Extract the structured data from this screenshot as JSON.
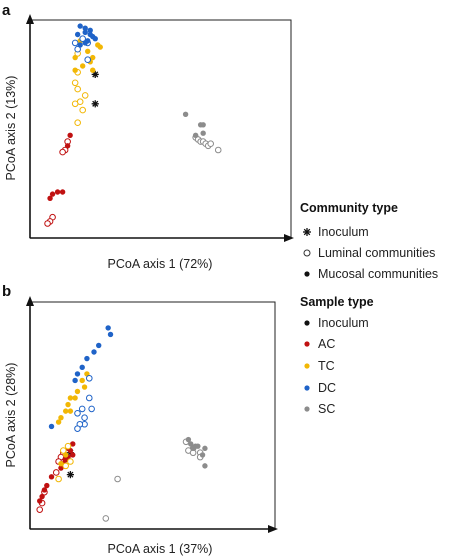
{
  "chart_data": [
    {
      "type": "scatter",
      "panel_label": "a",
      "xlabel": "PCoA axis 1 (72%)",
      "ylabel": "PCoA axis 2 (13%)",
      "xlim": [
        0,
        100
      ],
      "ylim": [
        0,
        100
      ],
      "grid": false,
      "series": [
        {
          "name": "Inoculum",
          "sample": "Inoculum",
          "community": "Inoculum",
          "points": [
            [
              24,
              76
            ],
            [
              24,
              62
            ]
          ]
        },
        {
          "name": "AC luminal",
          "sample": "AC",
          "community": "Luminal communities",
          "points": [
            [
              13,
              44
            ],
            [
              12,
              40
            ],
            [
              11,
              39
            ],
            [
              7,
              8
            ],
            [
              6,
              6
            ],
            [
              5,
              5
            ]
          ]
        },
        {
          "name": "AC mucosal",
          "sample": "AC",
          "community": "Mucosal communities",
          "points": [
            [
              14,
              47
            ],
            [
              13,
              42
            ],
            [
              11,
              20
            ],
            [
              9,
              20
            ],
            [
              7,
              19
            ],
            [
              6,
              17
            ]
          ]
        },
        {
          "name": "TC luminal",
          "sample": "TC",
          "community": "Luminal communities",
          "points": [
            [
              17,
              86
            ],
            [
              17,
              77
            ],
            [
              16,
              72
            ],
            [
              17,
              69
            ],
            [
              18,
              63
            ],
            [
              16,
              62
            ],
            [
              19,
              59
            ],
            [
              20,
              66
            ],
            [
              17,
              53
            ]
          ]
        },
        {
          "name": "TC mucosal",
          "sample": "TC",
          "community": "Mucosal communities",
          "points": [
            [
              18,
              92
            ],
            [
              16,
              84
            ],
            [
              21,
              87
            ],
            [
              23,
              84
            ],
            [
              25,
              90
            ],
            [
              26,
              89
            ],
            [
              22,
              82
            ],
            [
              19,
              80
            ],
            [
              23,
              78
            ],
            [
              16,
              78
            ]
          ]
        },
        {
          "name": "DC luminal",
          "sample": "DC",
          "community": "Luminal communities",
          "points": [
            [
              19,
              93
            ],
            [
              16,
              91
            ],
            [
              21,
              91
            ],
            [
              17,
              88
            ],
            [
              21,
              83
            ]
          ]
        },
        {
          "name": "DC mucosal",
          "sample": "DC",
          "community": "Mucosal communities",
          "points": [
            [
              18,
              99
            ],
            [
              20,
              98
            ],
            [
              22,
              97
            ],
            [
              20,
              96
            ],
            [
              22,
              95
            ],
            [
              23,
              94
            ],
            [
              24,
              93
            ],
            [
              17,
              95
            ],
            [
              21,
              92
            ],
            [
              20,
              91
            ],
            [
              18,
              90
            ]
          ]
        },
        {
          "name": "SC luminal",
          "sample": "SC",
          "community": "Luminal communities",
          "points": [
            [
              64,
              46
            ],
            [
              65,
              45
            ],
            [
              66,
              44
            ],
            [
              67,
              44
            ],
            [
              68,
              43
            ],
            [
              69,
              42
            ],
            [
              70,
              43
            ],
            [
              73,
              40
            ]
          ]
        },
        {
          "name": "SC mucosal",
          "sample": "SC",
          "community": "Mucosal communities",
          "points": [
            [
              60,
              57
            ],
            [
              66,
              52
            ],
            [
              67,
              52
            ],
            [
              67,
              48
            ],
            [
              64,
              47
            ]
          ]
        }
      ]
    },
    {
      "type": "scatter",
      "panel_label": "b",
      "xlabel": "PCoA axis 1 (37%)",
      "ylabel": "PCoA axis 2 (28%)",
      "xlim": [
        0,
        100
      ],
      "ylim": [
        0,
        100
      ],
      "grid": false,
      "series": [
        {
          "name": "Inoculum",
          "sample": "Inoculum",
          "community": "Inoculum",
          "points": [
            [
              15,
              23
            ],
            [
              15,
              33
            ]
          ]
        },
        {
          "name": "AC luminal",
          "sample": "AC",
          "community": "Luminal communities",
          "points": [
            [
              12,
              33
            ],
            [
              11,
              31
            ],
            [
              13,
              30
            ],
            [
              10,
              29
            ],
            [
              9,
              24
            ],
            [
              4,
              15
            ],
            [
              3,
              10
            ],
            [
              2,
              7
            ]
          ]
        },
        {
          "name": "AC mucosal",
          "sample": "AC",
          "community": "Mucosal communities",
          "points": [
            [
              16,
              37
            ],
            [
              14,
              35
            ],
            [
              15,
              34
            ],
            [
              16,
              32
            ],
            [
              14,
              31
            ],
            [
              13,
              30
            ],
            [
              12,
              28
            ],
            [
              11,
              26
            ],
            [
              7,
              22
            ],
            [
              5,
              18
            ],
            [
              4,
              16
            ],
            [
              3,
              13
            ],
            [
              2,
              11
            ]
          ]
        },
        {
          "name": "TC luminal",
          "sample": "TC",
          "community": "Luminal communities",
          "points": [
            [
              14,
              36
            ],
            [
              12,
              34
            ],
            [
              15,
              29
            ],
            [
              13,
              27
            ],
            [
              10,
              21
            ]
          ]
        },
        {
          "name": "TC mucosal",
          "sample": "TC",
          "community": "Mucosal communities",
          "points": [
            [
              22,
              69
            ],
            [
              20,
              66
            ],
            [
              21,
              63
            ],
            [
              18,
              61
            ],
            [
              17,
              58
            ],
            [
              15,
              58
            ],
            [
              14,
              55
            ],
            [
              15,
              52
            ],
            [
              13,
              52
            ],
            [
              11,
              49
            ],
            [
              10,
              47
            ],
            [
              13,
              32
            ],
            [
              11,
              28
            ]
          ]
        },
        {
          "name": "DC luminal",
          "sample": "DC",
          "community": "Luminal communities",
          "points": [
            [
              23,
              67
            ],
            [
              23,
              58
            ],
            [
              24,
              53
            ],
            [
              20,
              53
            ],
            [
              18,
              51
            ],
            [
              21,
              49
            ],
            [
              21,
              46
            ],
            [
              19,
              46
            ],
            [
              18,
              44
            ]
          ]
        },
        {
          "name": "DC mucosal",
          "sample": "DC",
          "community": "Mucosal communities",
          "points": [
            [
              31,
              90
            ],
            [
              32,
              87
            ],
            [
              27,
              82
            ],
            [
              25,
              79
            ],
            [
              22,
              76
            ],
            [
              20,
              72
            ],
            [
              18,
              69
            ],
            [
              17,
              66
            ],
            [
              7,
              45
            ]
          ]
        },
        {
          "name": "SC luminal",
          "sample": "SC",
          "community": "Luminal communities",
          "points": [
            [
              64,
              38
            ],
            [
              67,
              35
            ],
            [
              65,
              34
            ],
            [
              67,
              33
            ],
            [
              70,
              33
            ],
            [
              70,
              31
            ],
            [
              35,
              21
            ],
            [
              30,
              3
            ]
          ]
        },
        {
          "name": "SC mucosal",
          "sample": "SC",
          "community": "Mucosal communities",
          "points": [
            [
              65,
              39
            ],
            [
              66,
              37
            ],
            [
              68,
              36
            ],
            [
              69,
              36
            ],
            [
              72,
              35
            ],
            [
              67,
              35
            ],
            [
              71,
              32
            ],
            [
              72,
              27
            ]
          ]
        }
      ]
    }
  ],
  "legend": {
    "community_heading": "Community type",
    "community_items": [
      "Inoculum",
      "Luminal communities",
      "Mucosal communities"
    ],
    "sample_heading": "Sample type",
    "sample_items": [
      {
        "label": "Inoculum",
        "color": "#111111"
      },
      {
        "label": "AC",
        "color": "#c01111"
      },
      {
        "label": "TC",
        "color": "#f2b705"
      },
      {
        "label": "DC",
        "color": "#1f63c8"
      },
      {
        "label": "SC",
        "color": "#8c8c8c"
      }
    ]
  },
  "colors": {
    "Inoculum": "#111111",
    "AC": "#c01111",
    "TC": "#f2b705",
    "DC": "#1f63c8",
    "SC": "#8c8c8c"
  }
}
